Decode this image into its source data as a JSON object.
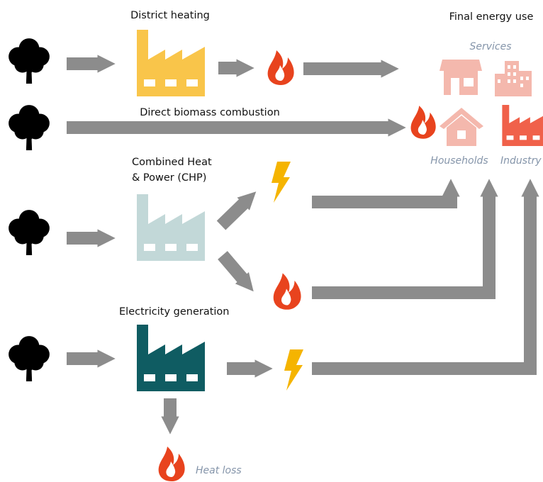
{
  "labels": {
    "district_heating": "District heating",
    "final_energy_use": "Final energy use",
    "services": "Services",
    "direct_biomass_combustion": "Direct biomass combustion",
    "households": "Households",
    "industry": "Industry",
    "chp": [
      "Combined Heat",
      "& Power (CHP)"
    ],
    "electricity_generation": "Electricity generation",
    "heat_loss": "Heat loss"
  }
}
